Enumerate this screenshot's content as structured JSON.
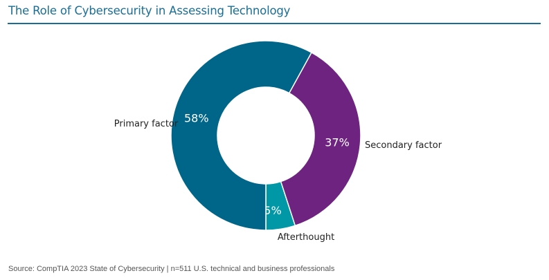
{
  "chart_data": {
    "type": "pie",
    "donut": true,
    "title": "The Role of Cybersecurity in Assessing Technology",
    "slices": [
      {
        "label": "Primary factor",
        "value": 58,
        "value_label": "58%",
        "color": "#006689"
      },
      {
        "label": "Secondary factor",
        "value": 37,
        "value_label": "37%",
        "color": "#6e2380"
      },
      {
        "label": "Afterthought",
        "value": 5,
        "value_label": "5%",
        "color": "#0098a6"
      }
    ],
    "source": "Source: CompTIA 2023 State of Cybersecurity | n=511 U.S. technical and business professionals"
  }
}
